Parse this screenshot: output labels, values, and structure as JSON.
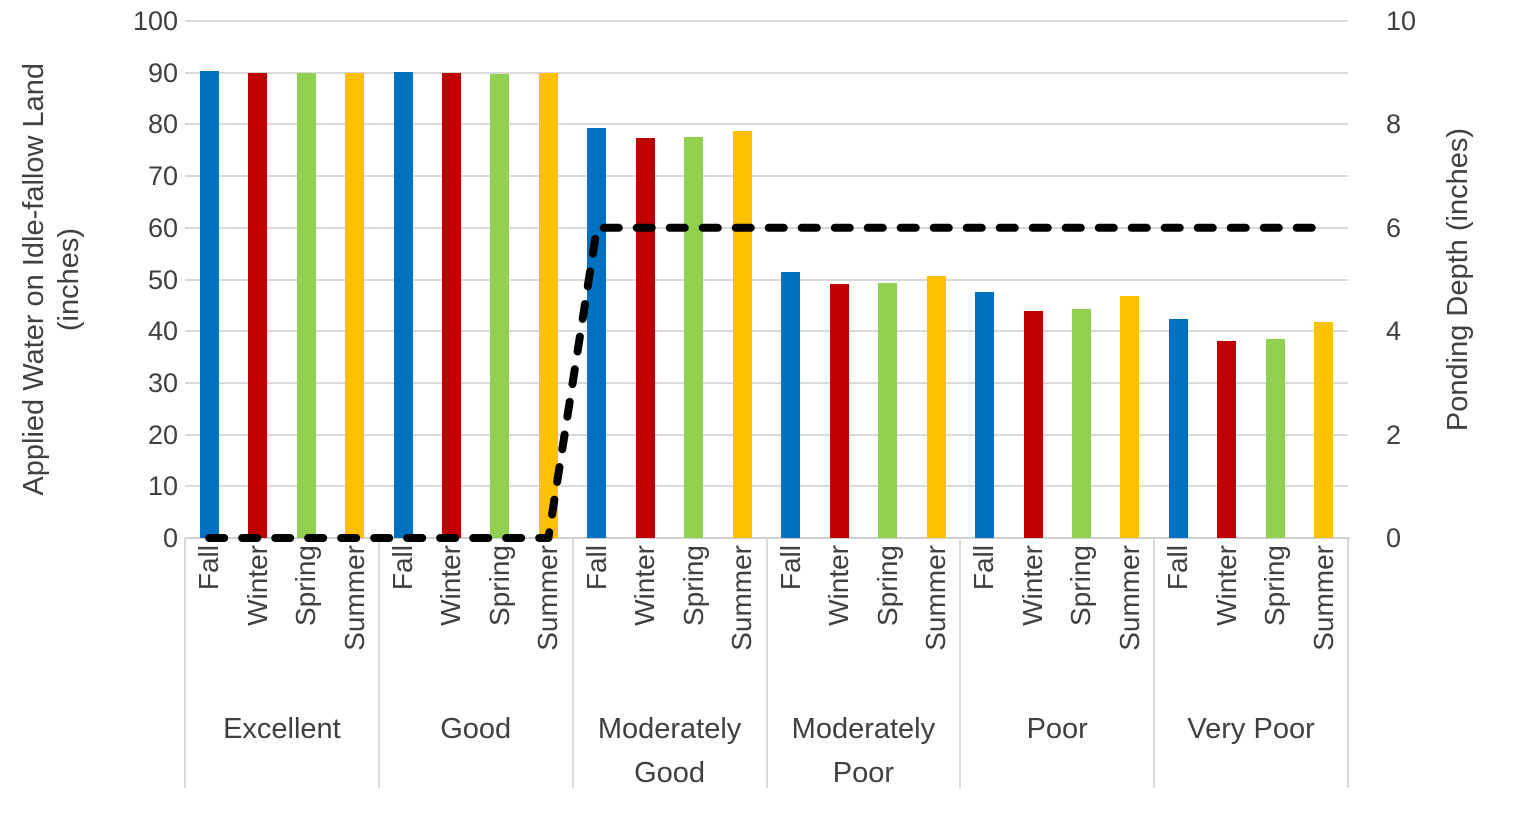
{
  "chart_data": {
    "type": "bar",
    "subtype": "grouped-bars-with-dashed-line-overlay",
    "title": "",
    "groups": [
      "Excellent",
      "Good",
      "Moderately Good",
      "Moderately Poor",
      "Poor",
      "Very Poor"
    ],
    "seasons": [
      "Fall",
      "Winter",
      "Spring",
      "Summer"
    ],
    "season_colors": {
      "Fall": "#0070C0",
      "Winter": "#C00000",
      "Spring": "#92D050",
      "Summer": "#FFC000"
    },
    "series": [
      {
        "name": "Fall",
        "axis": "left",
        "values": [
          90.3,
          90.2,
          79.3,
          51.5,
          47.6,
          42.4
        ]
      },
      {
        "name": "Winter",
        "axis": "left",
        "values": [
          90.0,
          90.0,
          77.3,
          49.1,
          43.9,
          38.2
        ]
      },
      {
        "name": "Spring",
        "axis": "left",
        "values": [
          89.9,
          89.8,
          77.6,
          49.4,
          44.3,
          38.5
        ]
      },
      {
        "name": "Summer",
        "axis": "left",
        "values": [
          90.0,
          90.0,
          78.7,
          50.7,
          46.9,
          41.7
        ]
      }
    ],
    "line_series": {
      "name": "Ponding Depth",
      "axis": "right",
      "values_by_group": [
        0,
        0,
        6,
        6,
        6,
        6
      ],
      "color": "#000000",
      "style": "dashed"
    },
    "left_axis": {
      "title_line1": "Applied Water on Idle-fallow Land",
      "title_line2": "(inches)",
      "min": 0,
      "max": 100,
      "ticks": [
        "100",
        "90",
        "80",
        "70",
        "60",
        "50",
        "40",
        "30",
        "20",
        "10",
        "0"
      ]
    },
    "right_axis": {
      "title": "Ponding Depth (inches)",
      "min": 0,
      "max": 10,
      "ticks": [
        "10",
        "8",
        "6",
        "4",
        "2",
        "0"
      ]
    },
    "grid": true,
    "legend": "none",
    "colors": {
      "gridline": "#D9D9D9",
      "axis_text": "#404040",
      "dashed_line": "#000000"
    }
  }
}
